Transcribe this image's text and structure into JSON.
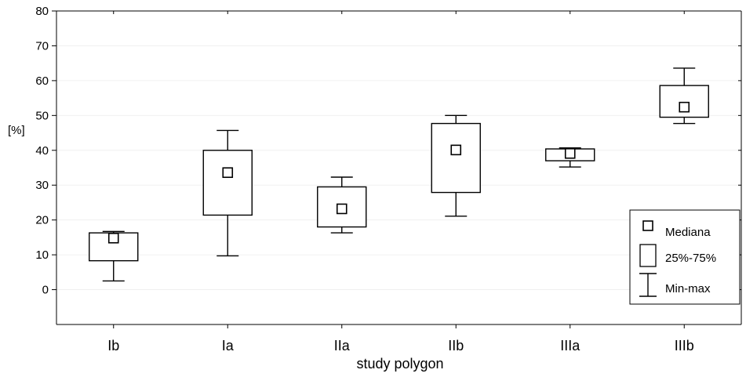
{
  "chart_data": {
    "type": "box",
    "title": "",
    "xlabel": "study polygon",
    "ylabel": "[%]",
    "ylim": [
      -10,
      80
    ],
    "yticks": [
      0,
      10,
      20,
      30,
      40,
      50,
      60,
      70,
      80
    ],
    "grid": true,
    "legend_position": "bottom-right",
    "categories": [
      "Ib",
      "Ia",
      "IIa",
      "IIb",
      "IIIa",
      "IIIb"
    ],
    "series": [
      {
        "category": "Ib",
        "min": 2.5,
        "q1": 8.3,
        "median": 14.8,
        "q3": 16.3,
        "max": 16.7
      },
      {
        "category": "Ia",
        "min": 9.7,
        "q1": 21.4,
        "median": 33.6,
        "q3": 40.0,
        "max": 45.7
      },
      {
        "category": "IIa",
        "min": 16.3,
        "q1": 18.0,
        "median": 23.2,
        "q3": 29.5,
        "max": 32.3
      },
      {
        "category": "IIb",
        "min": 21.1,
        "q1": 27.9,
        "median": 40.1,
        "q3": 47.7,
        "max": 50.0
      },
      {
        "category": "IIIa",
        "min": 35.2,
        "q1": 37.0,
        "median": 39.1,
        "q3": 40.4,
        "max": 40.7
      },
      {
        "category": "IIIb",
        "min": 47.7,
        "q1": 49.5,
        "median": 52.4,
        "q3": 58.6,
        "max": 63.6
      }
    ],
    "legend": {
      "median": "Mediana",
      "box": "25%-75%",
      "whisker": "Min-max"
    }
  }
}
